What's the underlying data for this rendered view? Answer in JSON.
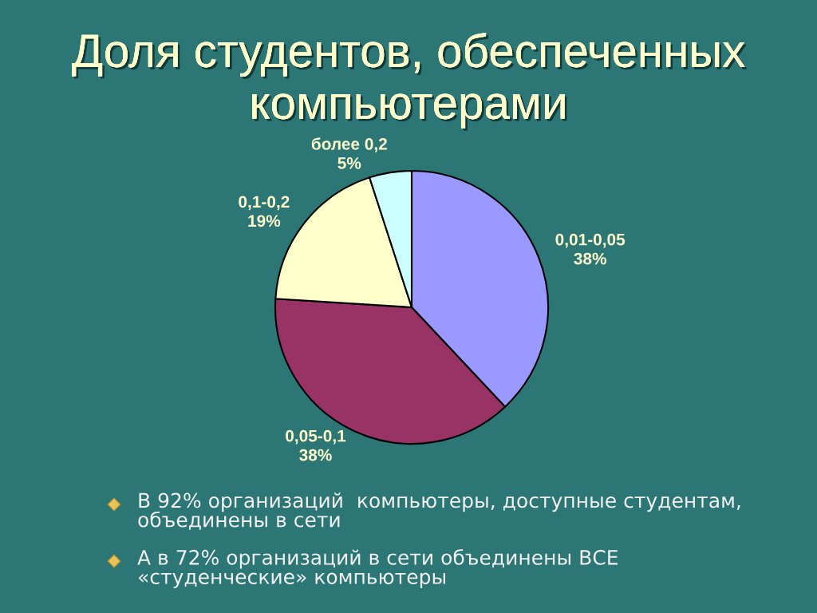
{
  "chart_data": {
    "type": "pie",
    "title": "Доля студентов, обеспеченных компьютерами",
    "categories": [
      "0,01-0,05",
      "0,05-0,1",
      "0,1-0,2",
      "более 0,2"
    ],
    "values": [
      38,
      38,
      19,
      5
    ],
    "value_labels": [
      "38%",
      "38%",
      "19%",
      "5%"
    ],
    "colors": [
      "#9999ff",
      "#993366",
      "#ffffcc",
      "#ccffff"
    ],
    "annotations": [
      "В 92% организаций  компьютеры, доступные студентам, объединены в сети",
      "А в 72% организаций в сети объединены ВСЕ «студенческие» компьютеры"
    ]
  }
}
